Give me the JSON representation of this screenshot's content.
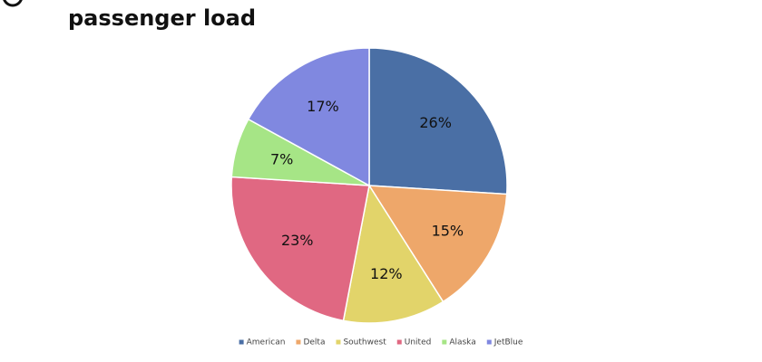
{
  "chart_data": {
    "type": "pie",
    "title": "passenger load",
    "categories": [
      "American",
      "Delta",
      "Southwest",
      "United",
      "Alaska",
      "JetBlue"
    ],
    "values": [
      26,
      15,
      12,
      23,
      7,
      17
    ],
    "value_labels": [
      "26%",
      "15%",
      "12%",
      "23%",
      "7%",
      "17%"
    ],
    "colors": [
      "#4a6fa5",
      "#eea76a",
      "#e2d46a",
      "#e06882",
      "#a6e586",
      "#8088e0"
    ],
    "legend": "bottom"
  }
}
